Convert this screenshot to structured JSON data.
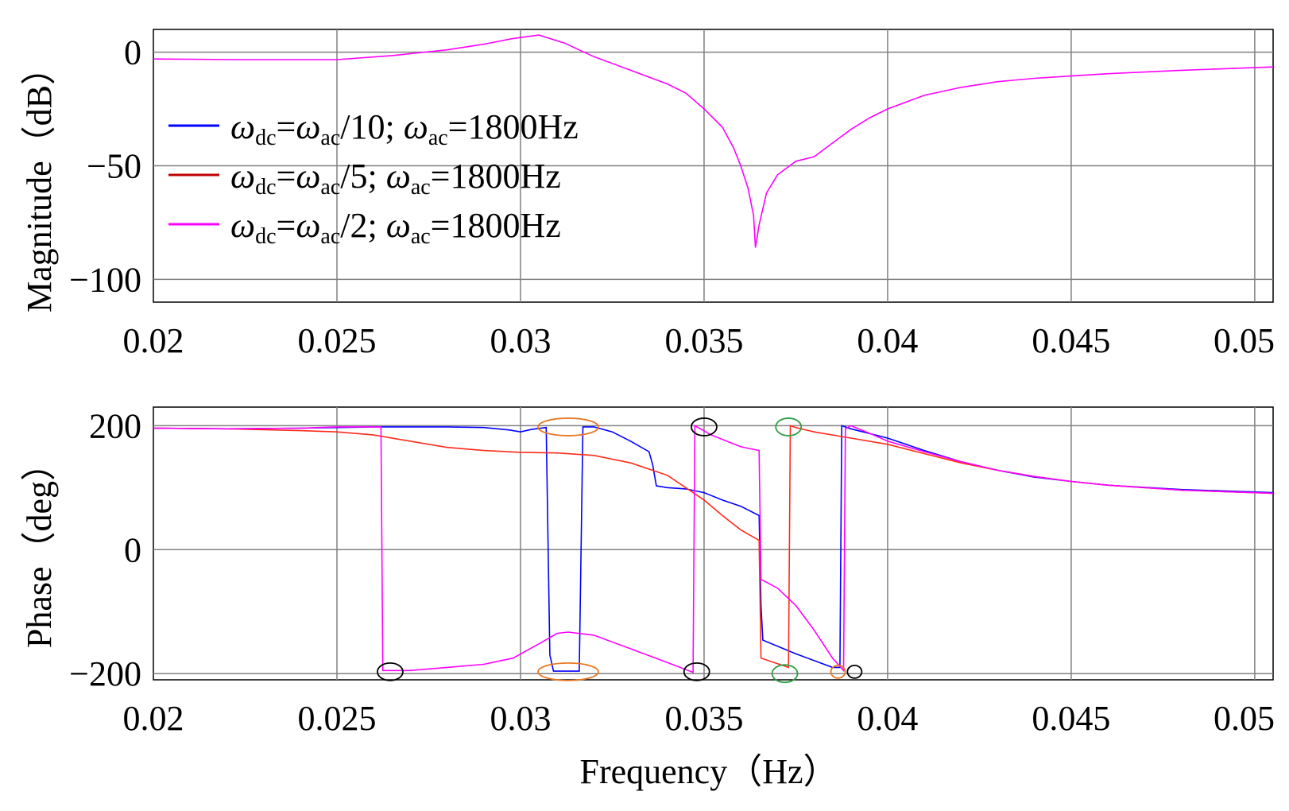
{
  "chart_data": [
    {
      "type": "line",
      "panel": "magnitude",
      "ylabel": "Magnitude（dB）",
      "xlabel": "",
      "xlim": [
        0.02,
        0.0505
      ],
      "ylim": [
        -110,
        10
      ],
      "xticks": [
        "0.02",
        "0.025",
        "0.03",
        "0.035",
        "0.04",
        "0.045",
        "0.05"
      ],
      "yticks": [
        "0",
        "−50",
        "−100"
      ],
      "grid": true,
      "legend_placement": "left",
      "legend": [
        {
          "base": "ω",
          "sub1": "dc",
          "mid": "=ω",
          "sub2": "ac",
          "tail": "/10; ω",
          "sub3": "ac",
          "end": "=1800Hz",
          "color": "#0000ff"
        },
        {
          "base": "ω",
          "sub1": "dc",
          "mid": "=ω",
          "sub2": "ac",
          "tail": "/5; ω",
          "sub3": "ac",
          "end": "=1800Hz",
          "color": "#c00000"
        },
        {
          "base": "ω",
          "sub1": "dc",
          "mid": "=ω",
          "sub2": "ac",
          "tail": "/2; ω",
          "sub3": "ac",
          "end": "=1800Hz",
          "color": "#ff00ff"
        }
      ],
      "series": [
        {
          "color": "#ff00ff",
          "points": [
            [
              0.02,
              -3
            ],
            [
              0.0225,
              -3.3
            ],
            [
              0.025,
              -3.3
            ],
            [
              0.0265,
              -1.5
            ],
            [
              0.028,
              1
            ],
            [
              0.029,
              3.5
            ],
            [
              0.0298,
              6
            ],
            [
              0.0305,
              7.5
            ],
            [
              0.0312,
              4
            ],
            [
              0.032,
              -2
            ],
            [
              0.033,
              -8
            ],
            [
              0.034,
              -14
            ],
            [
              0.0345,
              -18
            ],
            [
              0.035,
              -25
            ],
            [
              0.0355,
              -33
            ],
            [
              0.0358,
              -42
            ],
            [
              0.036,
              -50
            ],
            [
              0.0362,
              -60
            ],
            [
              0.03635,
              -72
            ],
            [
              0.0364,
              -86
            ],
            [
              0.0365,
              -76
            ],
            [
              0.0367,
              -62
            ],
            [
              0.037,
              -54
            ],
            [
              0.0375,
              -48
            ],
            [
              0.038,
              -46
            ],
            [
              0.0385,
              -40
            ],
            [
              0.039,
              -34
            ],
            [
              0.0395,
              -29
            ],
            [
              0.04,
              -25
            ],
            [
              0.041,
              -19
            ],
            [
              0.042,
              -15.5
            ],
            [
              0.043,
              -13
            ],
            [
              0.044,
              -11.5
            ],
            [
              0.045,
              -10.5
            ],
            [
              0.046,
              -9.5
            ],
            [
              0.048,
              -8
            ],
            [
              0.0505,
              -6.5
            ]
          ]
        }
      ]
    },
    {
      "type": "line",
      "panel": "phase",
      "ylabel": "Phase（deg）",
      "xlabel": "Frequency（Hz）",
      "xlim": [
        0.02,
        0.0505
      ],
      "ylim": [
        -210,
        230
      ],
      "xticks": [
        "0.02",
        "0.025",
        "0.03",
        "0.035",
        "0.04",
        "0.045",
        "0.05"
      ],
      "yticks": [
        "200",
        "0",
        "−200"
      ],
      "grid": true,
      "series": [
        {
          "color": "#0000ff",
          "points": [
            [
              0.02,
              196
            ],
            [
              0.022,
              195
            ],
            [
              0.024,
              196
            ],
            [
              0.025,
              197
            ],
            [
              0.026,
              198
            ],
            [
              0.0268,
              198
            ],
            [
              0.028,
              198
            ],
            [
              0.029,
              197
            ],
            [
              0.0297,
              193
            ],
            [
              0.03,
              190
            ],
            [
              0.0303,
              194
            ],
            [
              0.0307,
              197
            ],
            [
              0.0308,
              -170
            ],
            [
              0.0309,
              -196
            ],
            [
              0.0316,
              -196
            ],
            [
              0.0317,
              198
            ],
            [
              0.032,
              198
            ],
            [
              0.0325,
              190
            ],
            [
              0.033,
              175
            ],
            [
              0.0335,
              158
            ],
            [
              0.0336,
              137
            ],
            [
              0.0337,
              103
            ],
            [
              0.034,
              100
            ],
            [
              0.0345,
              98
            ],
            [
              0.035,
              92
            ],
            [
              0.0355,
              80
            ],
            [
              0.036,
              70
            ],
            [
              0.0365,
              55
            ],
            [
              0.03655,
              -90
            ],
            [
              0.0366,
              -146
            ],
            [
              0.0375,
              -168
            ],
            [
              0.0385,
              -190
            ],
            [
              0.0387,
              -190
            ],
            [
              0.03875,
              200
            ],
            [
              0.039,
              195
            ],
            [
              0.04,
              180
            ],
            [
              0.041,
              160
            ],
            [
              0.042,
              142
            ],
            [
              0.043,
              128
            ],
            [
              0.044,
              117
            ],
            [
              0.045,
              110
            ],
            [
              0.046,
              104
            ],
            [
              0.048,
              97
            ],
            [
              0.0505,
              92
            ]
          ]
        },
        {
          "color": "#ff2a1a",
          "points": [
            [
              0.02,
              196
            ],
            [
              0.022,
              195
            ],
            [
              0.024,
              192
            ],
            [
              0.025,
              190
            ],
            [
              0.026,
              185
            ],
            [
              0.027,
              175
            ],
            [
              0.028,
              165
            ],
            [
              0.029,
              160
            ],
            [
              0.03,
              157
            ],
            [
              0.031,
              156
            ],
            [
              0.032,
              152
            ],
            [
              0.033,
              140
            ],
            [
              0.034,
              120
            ],
            [
              0.0345,
              100
            ],
            [
              0.035,
              80
            ],
            [
              0.0355,
              55
            ],
            [
              0.036,
              32
            ],
            [
              0.0365,
              15
            ],
            [
              0.03655,
              -175
            ],
            [
              0.0373,
              -190
            ],
            [
              0.03735,
              200
            ],
            [
              0.0375,
              197
            ],
            [
              0.038,
              190
            ],
            [
              0.039,
              180
            ],
            [
              0.04,
              170
            ],
            [
              0.041,
              155
            ],
            [
              0.042,
              140
            ],
            [
              0.043,
              128
            ],
            [
              0.044,
              118
            ],
            [
              0.045,
              110
            ],
            [
              0.046,
              104
            ],
            [
              0.048,
              96
            ],
            [
              0.0505,
              91
            ]
          ]
        },
        {
          "color": "#ff00ff",
          "points": [
            [
              0.02,
              196
            ],
            [
              0.022,
              195
            ],
            [
              0.024,
              196
            ],
            [
              0.025,
              198
            ],
            [
              0.0262,
              198
            ],
            [
              0.02625,
              -195
            ],
            [
              0.027,
              -195
            ],
            [
              0.028,
              -190
            ],
            [
              0.029,
              -185
            ],
            [
              0.0298,
              -175
            ],
            [
              0.0305,
              -152
            ],
            [
              0.031,
              -135
            ],
            [
              0.0313,
              -133
            ],
            [
              0.032,
              -138
            ],
            [
              0.033,
              -160
            ],
            [
              0.034,
              -182
            ],
            [
              0.0347,
              -198
            ],
            [
              0.03475,
              200
            ],
            [
              0.0352,
              185
            ],
            [
              0.036,
              166
            ],
            [
              0.0365,
              160
            ],
            [
              0.03655,
              -48
            ],
            [
              0.037,
              -62
            ],
            [
              0.0375,
              -90
            ],
            [
              0.038,
              -130
            ],
            [
              0.0385,
              -175
            ],
            [
              0.0388,
              -195
            ],
            [
              0.03885,
              195
            ],
            [
              0.039,
              200
            ],
            [
              0.0395,
              188
            ],
            [
              0.04,
              175
            ],
            [
              0.041,
              158
            ],
            [
              0.042,
              142
            ],
            [
              0.043,
              128
            ],
            [
              0.044,
              118
            ],
            [
              0.045,
              110
            ],
            [
              0.046,
              104
            ],
            [
              0.048,
              96
            ],
            [
              0.0505,
              91
            ]
          ]
        }
      ],
      "annotations": [
        {
          "kind": "ellipse",
          "color": "#000000",
          "x": 0.02645,
          "y": -197
        },
        {
          "kind": "ellipse-wide",
          "color": "#e87722",
          "x": 0.0313,
          "y": 198
        },
        {
          "kind": "ellipse-wide",
          "color": "#e87722",
          "x": 0.0313,
          "y": -197
        },
        {
          "kind": "ellipse",
          "color": "#000000",
          "x": 0.035,
          "y": 198
        },
        {
          "kind": "ellipse",
          "color": "#000000",
          "x": 0.0348,
          "y": -197
        },
        {
          "kind": "ellipse",
          "color": "#2e9e44",
          "x": 0.0373,
          "y": 198
        },
        {
          "kind": "ellipse",
          "color": "#2e9e44",
          "x": 0.0372,
          "y": -200
        },
        {
          "kind": "ellipse-small",
          "color": "#e87722",
          "x": 0.03865,
          "y": -197
        },
        {
          "kind": "ellipse-small",
          "color": "#000000",
          "x": 0.0391,
          "y": -197
        }
      ]
    }
  ]
}
